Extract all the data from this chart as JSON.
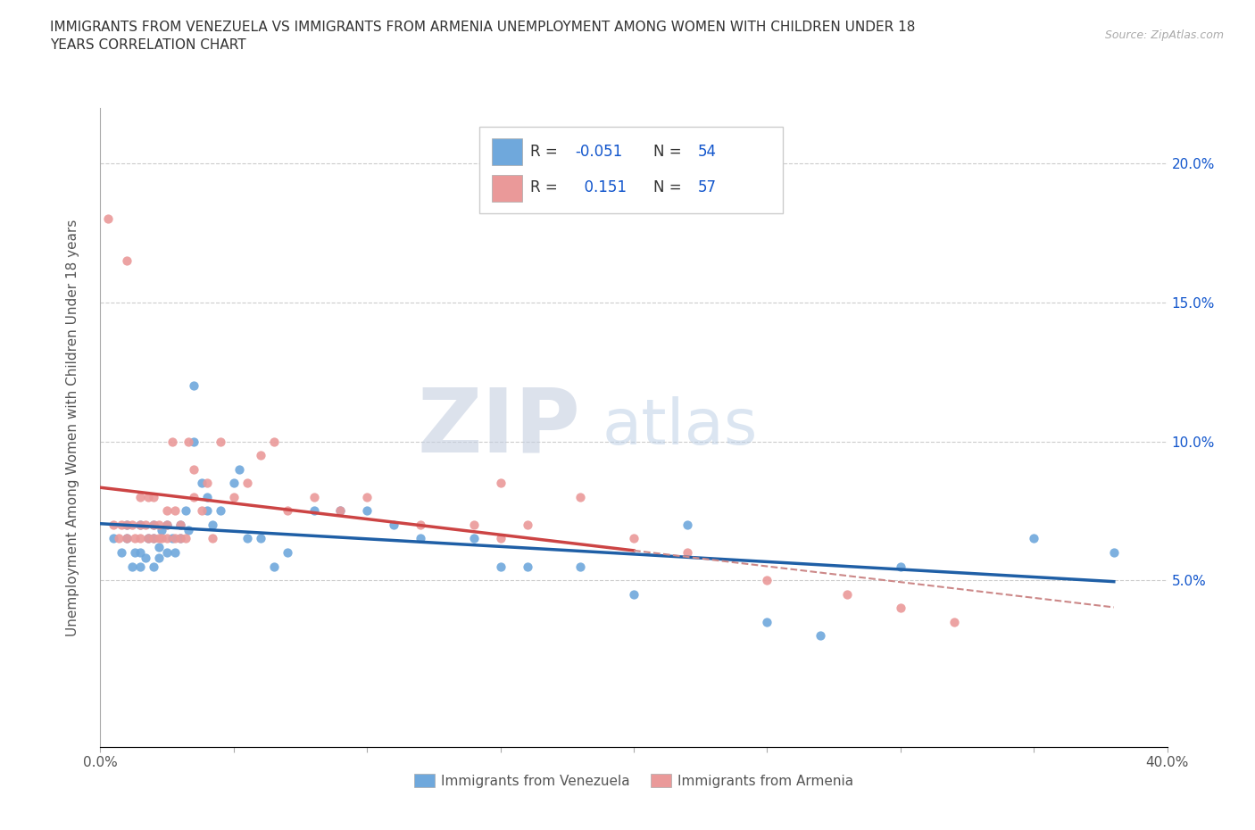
{
  "title": "IMMIGRANTS FROM VENEZUELA VS IMMIGRANTS FROM ARMENIA UNEMPLOYMENT AMONG WOMEN WITH CHILDREN UNDER 18\nYEARS CORRELATION CHART",
  "source": "Source: ZipAtlas.com",
  "ylabel": "Unemployment Among Women with Children Under 18 years",
  "xlim": [
    0.0,
    0.4
  ],
  "ylim": [
    -0.01,
    0.22
  ],
  "xticks": [
    0.0,
    0.05,
    0.1,
    0.15,
    0.2,
    0.25,
    0.3,
    0.35,
    0.4
  ],
  "yticks": [
    0.0,
    0.05,
    0.1,
    0.15,
    0.2
  ],
  "color_venezuela": "#6fa8dc",
  "color_armenia": "#ea9999",
  "line_color_venezuela": "#1f5fa6",
  "line_color_armenia": "#cc4444",
  "line_dash_color_armenia": "#cc8888",
  "watermark_zip": "ZIP",
  "watermark_atlas": "atlas",
  "watermark_color_zip": "#c5cfe0",
  "watermark_color_atlas": "#b8cce4",
  "legend_r_color": "#1155cc",
  "R_venezuela": -0.051,
  "N_venezuela": 54,
  "R_armenia": 0.151,
  "N_armenia": 57,
  "venezuela_scatter_x": [
    0.005,
    0.008,
    0.01,
    0.01,
    0.012,
    0.013,
    0.015,
    0.015,
    0.015,
    0.017,
    0.018,
    0.02,
    0.02,
    0.02,
    0.022,
    0.022,
    0.023,
    0.025,
    0.025,
    0.027,
    0.028,
    0.03,
    0.03,
    0.032,
    0.033,
    0.035,
    0.035,
    0.038,
    0.04,
    0.04,
    0.042,
    0.045,
    0.05,
    0.052,
    0.055,
    0.06,
    0.065,
    0.07,
    0.08,
    0.09,
    0.1,
    0.11,
    0.12,
    0.14,
    0.15,
    0.16,
    0.18,
    0.2,
    0.22,
    0.25,
    0.27,
    0.3,
    0.35,
    0.38
  ],
  "venezuela_scatter_y": [
    0.065,
    0.06,
    0.065,
    0.07,
    0.055,
    0.06,
    0.055,
    0.06,
    0.07,
    0.058,
    0.065,
    0.055,
    0.065,
    0.07,
    0.058,
    0.062,
    0.068,
    0.06,
    0.07,
    0.065,
    0.06,
    0.065,
    0.07,
    0.075,
    0.068,
    0.12,
    0.1,
    0.085,
    0.08,
    0.075,
    0.07,
    0.075,
    0.085,
    0.09,
    0.065,
    0.065,
    0.055,
    0.06,
    0.075,
    0.075,
    0.075,
    0.07,
    0.065,
    0.065,
    0.055,
    0.055,
    0.055,
    0.045,
    0.07,
    0.035,
    0.03,
    0.055,
    0.065,
    0.06
  ],
  "armenia_scatter_x": [
    0.003,
    0.005,
    0.007,
    0.008,
    0.01,
    0.01,
    0.01,
    0.012,
    0.013,
    0.015,
    0.015,
    0.015,
    0.017,
    0.018,
    0.018,
    0.02,
    0.02,
    0.02,
    0.022,
    0.022,
    0.023,
    0.025,
    0.025,
    0.025,
    0.027,
    0.028,
    0.028,
    0.03,
    0.03,
    0.032,
    0.033,
    0.035,
    0.035,
    0.038,
    0.04,
    0.042,
    0.045,
    0.05,
    0.055,
    0.06,
    0.065,
    0.07,
    0.08,
    0.09,
    0.1,
    0.12,
    0.14,
    0.15,
    0.16,
    0.18,
    0.2,
    0.22,
    0.25,
    0.28,
    0.3,
    0.32,
    0.15
  ],
  "armenia_scatter_y": [
    0.18,
    0.07,
    0.065,
    0.07,
    0.065,
    0.07,
    0.165,
    0.07,
    0.065,
    0.065,
    0.07,
    0.08,
    0.07,
    0.065,
    0.08,
    0.065,
    0.07,
    0.08,
    0.065,
    0.07,
    0.065,
    0.07,
    0.075,
    0.065,
    0.1,
    0.065,
    0.075,
    0.065,
    0.07,
    0.065,
    0.1,
    0.09,
    0.08,
    0.075,
    0.085,
    0.065,
    0.1,
    0.08,
    0.085,
    0.095,
    0.1,
    0.075,
    0.08,
    0.075,
    0.08,
    0.07,
    0.07,
    0.065,
    0.07,
    0.08,
    0.065,
    0.06,
    0.05,
    0.045,
    0.04,
    0.035,
    0.085
  ]
}
